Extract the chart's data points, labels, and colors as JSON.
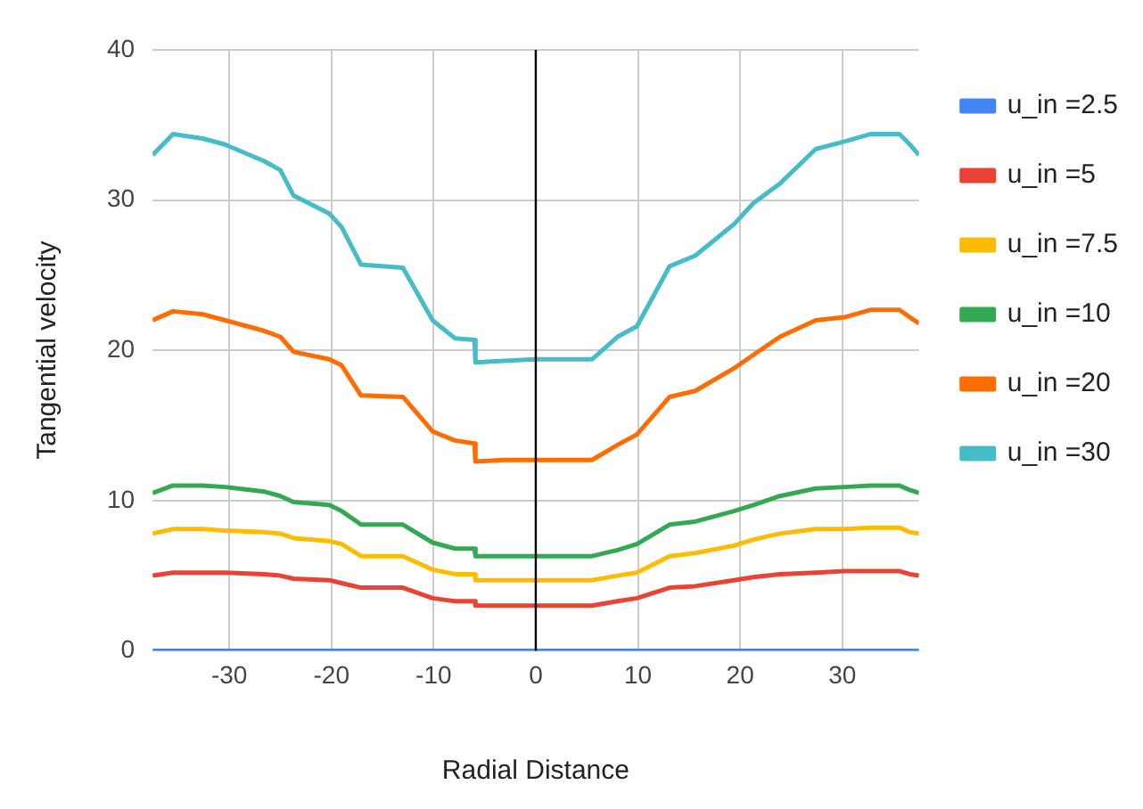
{
  "chart_data": {
    "type": "line",
    "xlabel": "Radial Distance",
    "ylabel": "Tangential velocity",
    "x": [
      -37.5,
      -35.5,
      -32.6,
      -30.4,
      -26.6,
      -25,
      -23.7,
      -20.2,
      -19,
      -17.1,
      -13,
      -10.1,
      -7.9,
      -6,
      -5.9,
      -3.1,
      0,
      5.5,
      8,
      9.9,
      13.1,
      15.6,
      19.4,
      21.3,
      23.9,
      27.4,
      30.2,
      32.8,
      35.6,
      36.6,
      37.5
    ],
    "series": [
      {
        "name": "u_in =2.5",
        "color": "#4285f4",
        "values": [
          0,
          0,
          0,
          0,
          0,
          0,
          0,
          0,
          0,
          0,
          0,
          0,
          0,
          0,
          0,
          0,
          0,
          0,
          0,
          0,
          0,
          0,
          0,
          0,
          0,
          0,
          0,
          0,
          0,
          0,
          0
        ]
      },
      {
        "name": "u_in =5",
        "color": "#ea4335",
        "values": [
          5.0,
          5.2,
          5.2,
          5.2,
          5.1,
          5.0,
          4.8,
          4.7,
          4.5,
          4.2,
          4.2,
          3.5,
          3.3,
          3.3,
          3.0,
          3.0,
          3.0,
          3.0,
          3.3,
          3.5,
          4.2,
          4.3,
          4.7,
          4.9,
          5.1,
          5.2,
          5.3,
          5.3,
          5.3,
          5.1,
          5.0
        ]
      },
      {
        "name": "u_in =7.5",
        "color": "#fbbc04",
        "values": [
          7.8,
          8.1,
          8.1,
          8.0,
          7.9,
          7.8,
          7.5,
          7.3,
          7.1,
          6.3,
          6.3,
          5.4,
          5.1,
          5.1,
          4.7,
          4.7,
          4.7,
          4.7,
          5.0,
          5.2,
          6.3,
          6.5,
          7.0,
          7.4,
          7.8,
          8.1,
          8.1,
          8.2,
          8.2,
          7.9,
          7.8
        ]
      },
      {
        "name": "u_in =10",
        "color": "#34a853",
        "values": [
          10.5,
          11.0,
          11.0,
          10.9,
          10.6,
          10.3,
          9.9,
          9.7,
          9.3,
          8.4,
          8.4,
          7.2,
          6.8,
          6.8,
          6.3,
          6.3,
          6.3,
          6.3,
          6.7,
          7.1,
          8.4,
          8.6,
          9.3,
          9.7,
          10.3,
          10.8,
          10.9,
          11.0,
          11.0,
          10.7,
          10.5
        ]
      },
      {
        "name": "u_in =20",
        "color": "#ff6d01",
        "values": [
          22.0,
          22.6,
          22.4,
          22.0,
          21.3,
          20.9,
          19.9,
          19.4,
          19.0,
          17.0,
          16.9,
          14.6,
          14.0,
          13.8,
          12.6,
          12.7,
          12.7,
          12.7,
          13.7,
          14.4,
          16.9,
          17.3,
          18.8,
          19.7,
          20.9,
          22.0,
          22.2,
          22.7,
          22.7,
          22.2,
          21.8
        ]
      },
      {
        "name": "u_in =30",
        "color": "#46bdc6",
        "values": [
          33.0,
          34.4,
          34.1,
          33.7,
          32.6,
          32.0,
          30.3,
          29.1,
          28.2,
          25.7,
          25.5,
          22.0,
          20.8,
          20.7,
          19.2,
          19.3,
          19.4,
          19.4,
          20.9,
          21.6,
          25.6,
          26.3,
          28.4,
          29.8,
          31.1,
          33.4,
          33.9,
          34.4,
          34.4,
          33.7,
          33.0
        ]
      }
    ],
    "xlim": [
      -37.5,
      37.5
    ],
    "xticks": [
      -30,
      -20,
      -10,
      0,
      10,
      20,
      30
    ],
    "ylim": [
      0,
      40
    ],
    "yticks": [
      0,
      10,
      20,
      30,
      40
    ],
    "ref_lines": [
      {
        "axis": "x",
        "value": 0,
        "color": "#000000"
      }
    ],
    "grid": true,
    "legend": "right",
    "marker": "none",
    "line_style": "solid"
  }
}
